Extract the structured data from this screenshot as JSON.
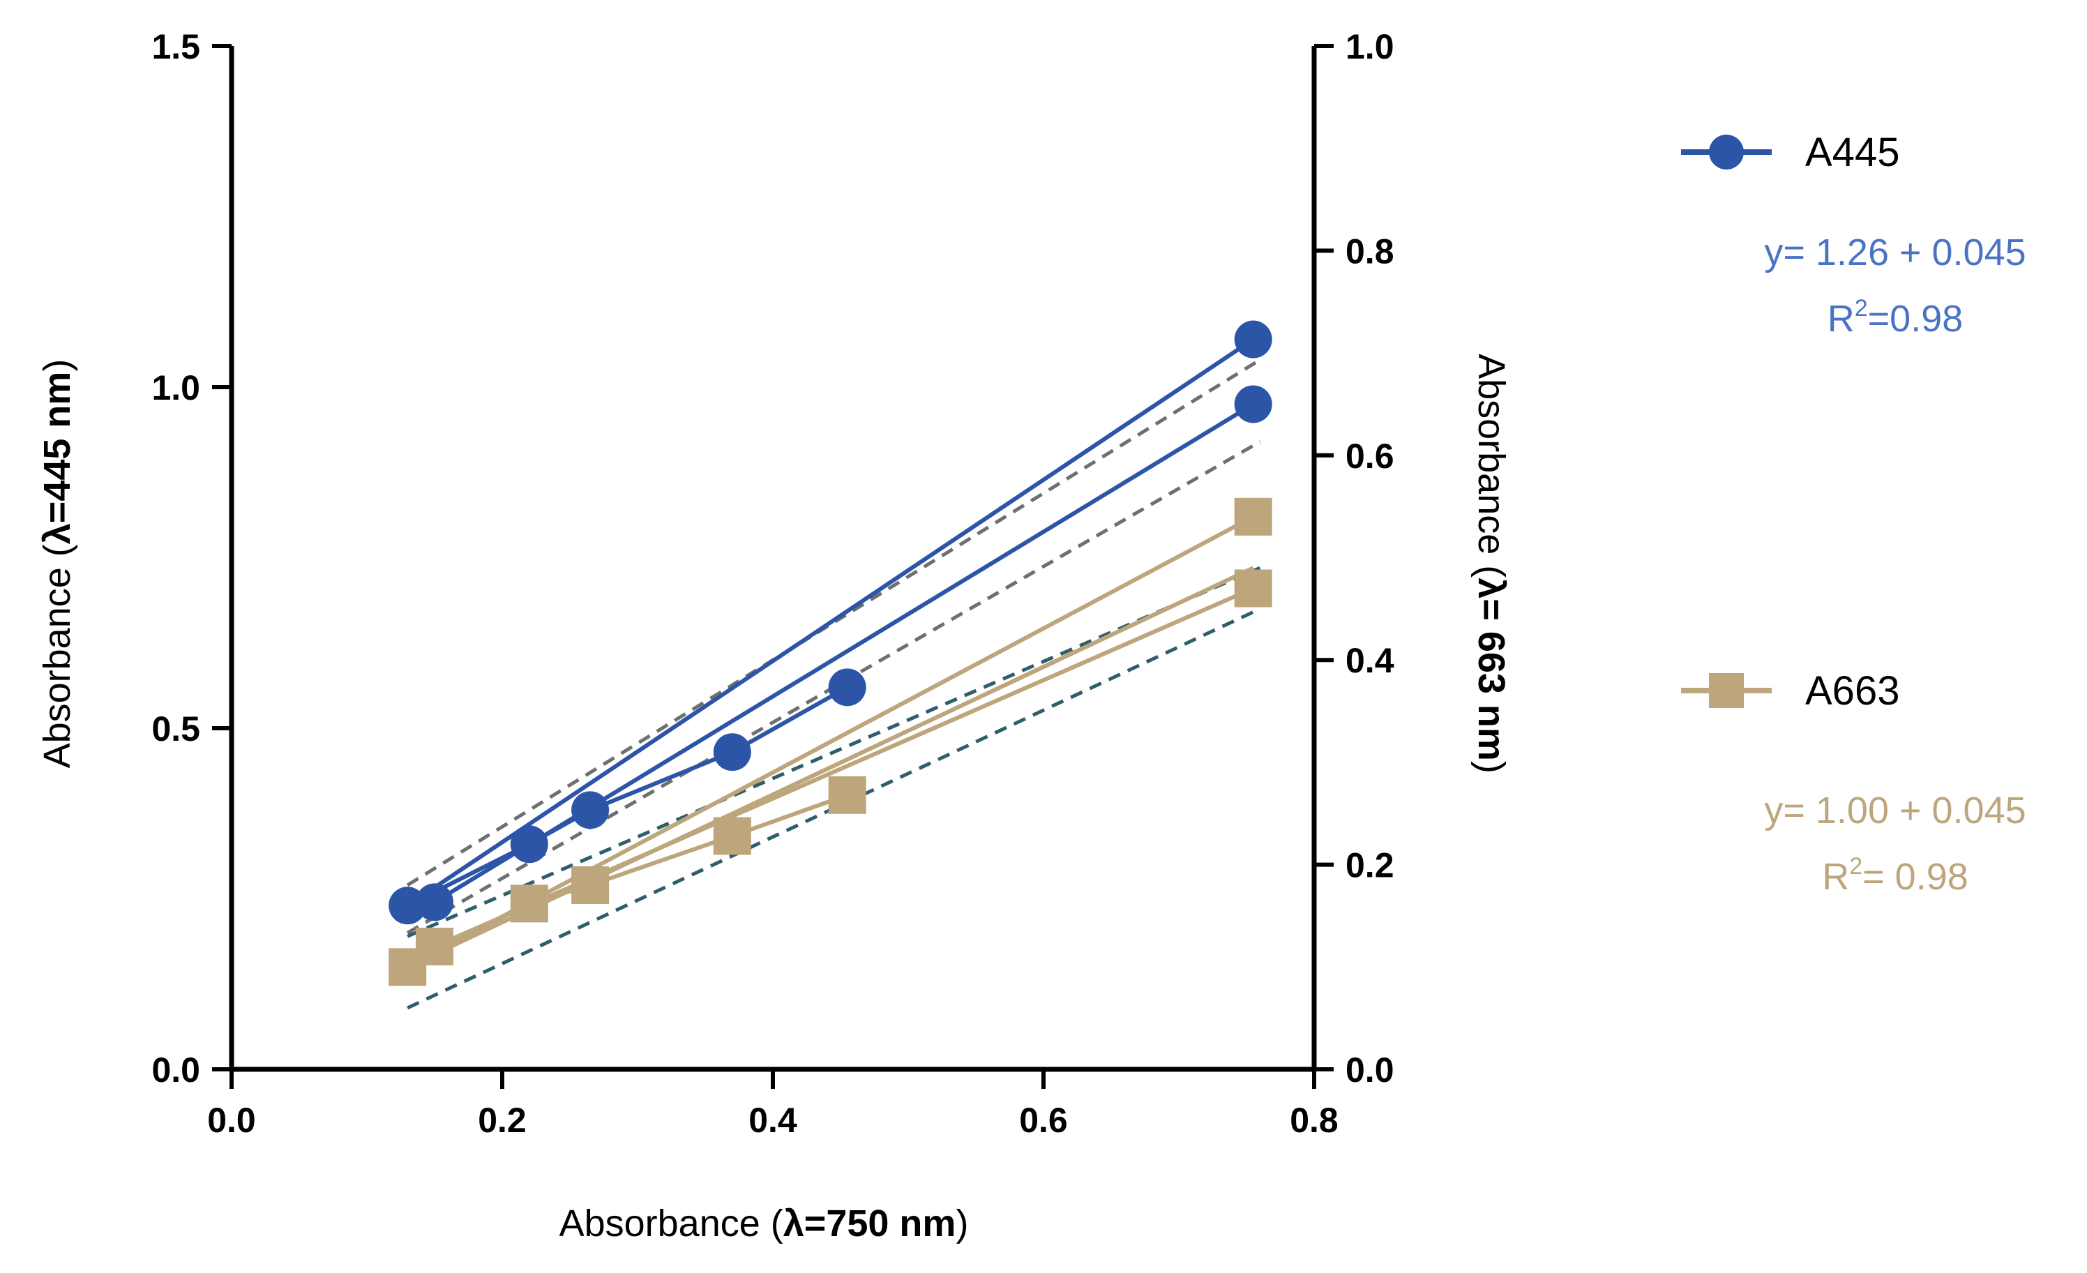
{
  "chart_data": {
    "type": "line",
    "x_axis": {
      "label_plain": "Absorbance (",
      "label_bold": "λ=750 nm",
      "label_close": ")",
      "range": [
        0,
        0.8
      ],
      "ticks": [
        0.0,
        0.2,
        0.4,
        0.6,
        0.8
      ],
      "tick_labels": [
        "0.0",
        "0.2",
        "0.4",
        "0.6",
        "0.8"
      ]
    },
    "y_left": {
      "label_plain": "Absorbance (",
      "label_bold": "λ=445 nm",
      "label_close": ")",
      "range": [
        0,
        1.5
      ],
      "ticks": [
        0.0,
        0.5,
        1.0,
        1.5
      ],
      "tick_labels": [
        "0.0",
        "0.5",
        "1.0",
        "1.5"
      ]
    },
    "y_right": {
      "label_plain": "Absorbance (",
      "label_bold": "λ= 663 nm",
      "label_close": ")",
      "range": [
        0,
        1.0
      ],
      "ticks": [
        0.0,
        0.2,
        0.4,
        0.6,
        0.8,
        1.0
      ],
      "tick_labels": [
        "0.0",
        "0.2",
        "0.4",
        "0.6",
        "0.8",
        "1.0"
      ]
    },
    "grid": false,
    "legend_position": "right",
    "series": [
      {
        "name": "A445",
        "axis": "left",
        "marker": "circle",
        "color": "#2c55a8",
        "x": [
          0.13,
          0.15,
          0.22,
          0.265,
          0.37,
          0.455,
          0.755,
          0.755
        ],
        "y": [
          0.24,
          0.245,
          0.33,
          0.38,
          0.465,
          0.56,
          1.07,
          0.975
        ],
        "lines": [
          [
            [
              0.13,
              0.24
            ],
            [
              0.755,
              1.07
            ]
          ],
          [
            [
              0.15,
              0.245
            ],
            [
              0.755,
              0.975
            ]
          ],
          [
            [
              0.13,
              0.24
            ],
            [
              0.22,
              0.33
            ],
            [
              0.265,
              0.38
            ],
            [
              0.37,
              0.465
            ],
            [
              0.455,
              0.56
            ]
          ]
        ],
        "fit_lines": [
          [
            [
              0.13,
              0.27
            ],
            [
              0.76,
              1.04
            ]
          ],
          [
            [
              0.13,
              0.2
            ],
            [
              0.76,
              0.92
            ]
          ]
        ],
        "fit_color": "#6e7070",
        "equation": "y= 1.26 + 0.045",
        "r2_prefix": "R",
        "r2_sup": "2",
        "r2_value": "=0.98",
        "text_color": "#4a73c4"
      },
      {
        "name": "A663",
        "axis": "right",
        "marker": "square",
        "color": "#bda57c",
        "x": [
          0.13,
          0.15,
          0.22,
          0.265,
          0.37,
          0.455,
          0.755,
          0.755
        ],
        "y": [
          0.1,
          0.12,
          0.162,
          0.18,
          0.228,
          0.268,
          0.54,
          0.47
        ],
        "lines": [
          [
            [
              0.13,
              0.1
            ],
            [
              0.755,
              0.54
            ]
          ],
          [
            [
              0.15,
              0.12
            ],
            [
              0.755,
              0.47
            ]
          ],
          [
            [
              0.13,
              0.1
            ],
            [
              0.755,
              0.49
            ]
          ],
          [
            [
              0.13,
              0.1
            ],
            [
              0.22,
              0.162
            ],
            [
              0.265,
              0.18
            ],
            [
              0.37,
              0.228
            ],
            [
              0.455,
              0.268
            ]
          ]
        ],
        "fit_lines": [
          [
            [
              0.13,
              0.13
            ],
            [
              0.76,
              0.49
            ]
          ],
          [
            [
              0.13,
              0.06
            ],
            [
              0.76,
              0.45
            ]
          ]
        ],
        "fit_color": "#2e5e6a",
        "equation": "y= 1.00 + 0.045",
        "r2_prefix": "R",
        "r2_sup": "2",
        "r2_value": "= 0.98",
        "text_color": "#bda57c"
      }
    ]
  }
}
